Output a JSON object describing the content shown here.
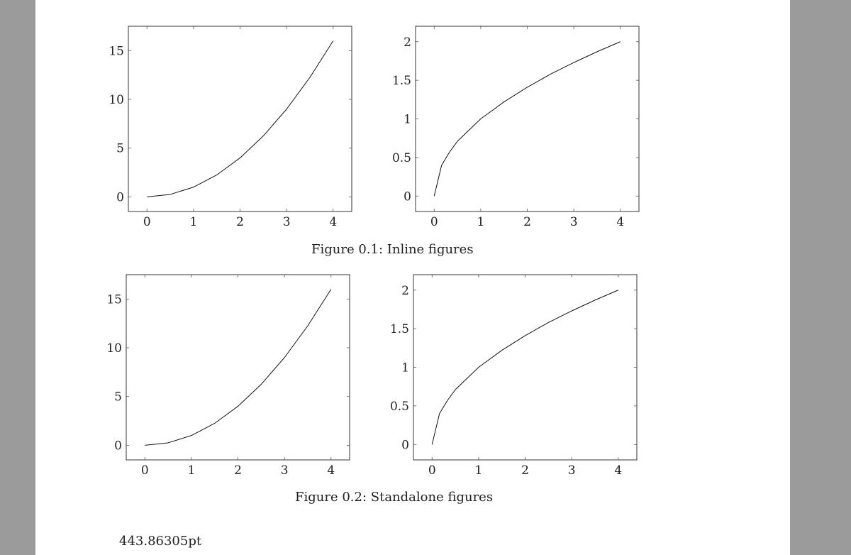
{
  "figures": [
    {
      "caption": "Figure 0.1: Inline figures"
    },
    {
      "caption": "Figure 0.2: Standalone figures"
    }
  ],
  "footer_text": "443.86305pt",
  "chart_data": [
    {
      "type": "line",
      "figure": "Figure 0.1: Inline figures",
      "x": [
        0,
        0.5,
        1,
        1.5,
        2,
        2.5,
        3,
        3.5,
        4
      ],
      "series": [
        {
          "values": [
            0,
            0.25,
            1,
            2.25,
            4,
            6.25,
            9,
            12.25,
            16
          ]
        }
      ],
      "xlim": [
        -0.4,
        4.4
      ],
      "ylim": [
        -1.5,
        17.5
      ],
      "xticks": [
        "0",
        "1",
        "2",
        "3",
        "4"
      ],
      "yticks": [
        "0",
        "5",
        "10",
        "15"
      ],
      "xtick_values": [
        0,
        1,
        2,
        3,
        4
      ],
      "ytick_values": [
        0,
        5,
        10,
        15
      ],
      "grid": false
    },
    {
      "type": "line",
      "figure": "Figure 0.1: Inline figures",
      "x": [
        0,
        0.16,
        0.33,
        0.5,
        1,
        1.5,
        2,
        2.5,
        3,
        3.5,
        4
      ],
      "series": [
        {
          "values": [
            0,
            0.4,
            0.57,
            0.71,
            1,
            1.22,
            1.41,
            1.58,
            1.73,
            1.87,
            2
          ]
        }
      ],
      "xlim": [
        -0.4,
        4.4
      ],
      "ylim": [
        -0.2,
        2.2
      ],
      "xticks": [
        "0",
        "1",
        "2",
        "3",
        "4"
      ],
      "yticks": [
        "0",
        "0.5",
        "1",
        "1.5",
        "2"
      ],
      "xtick_values": [
        0,
        1,
        2,
        3,
        4
      ],
      "ytick_values": [
        0,
        0.5,
        1,
        1.5,
        2
      ],
      "grid": false
    },
    {
      "type": "line",
      "figure": "Figure 0.2: Standalone figures",
      "x": [
        0,
        0.5,
        1,
        1.5,
        2,
        2.5,
        3,
        3.5,
        4
      ],
      "series": [
        {
          "values": [
            0,
            0.25,
            1,
            2.25,
            4,
            6.25,
            9,
            12.25,
            16
          ]
        }
      ],
      "xlim": [
        -0.4,
        4.4
      ],
      "ylim": [
        -1.5,
        17.5
      ],
      "xticks": [
        "0",
        "1",
        "2",
        "3",
        "4"
      ],
      "yticks": [
        "0",
        "5",
        "10",
        "15"
      ],
      "xtick_values": [
        0,
        1,
        2,
        3,
        4
      ],
      "ytick_values": [
        0,
        5,
        10,
        15
      ],
      "grid": false
    },
    {
      "type": "line",
      "figure": "Figure 0.2: Standalone figures",
      "x": [
        0,
        0.16,
        0.33,
        0.5,
        1,
        1.5,
        2,
        2.5,
        3,
        3.5,
        4
      ],
      "series": [
        {
          "values": [
            0,
            0.4,
            0.57,
            0.71,
            1,
            1.22,
            1.41,
            1.58,
            1.73,
            1.87,
            2
          ]
        }
      ],
      "xlim": [
        -0.4,
        4.4
      ],
      "ylim": [
        -0.2,
        2.2
      ],
      "xticks": [
        "0",
        "1",
        "2",
        "3",
        "4"
      ],
      "yticks": [
        "0",
        "0.5",
        "1",
        "1.5",
        "2"
      ],
      "xtick_values": [
        0,
        1,
        2,
        3,
        4
      ],
      "ytick_values": [
        0,
        0.5,
        1,
        1.5,
        2
      ],
      "grid": false
    }
  ]
}
